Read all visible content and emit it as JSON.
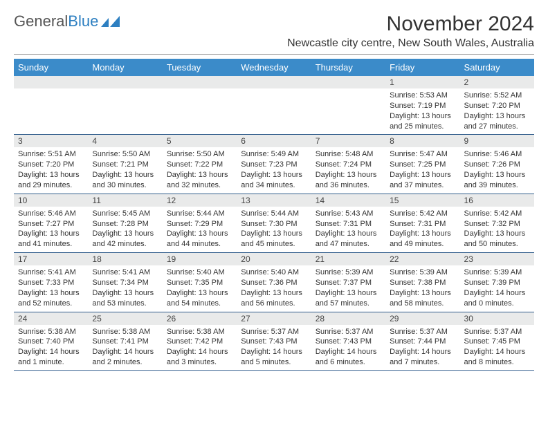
{
  "logo": {
    "text_gray": "General",
    "text_blue": "Blue"
  },
  "title": "November 2024",
  "location": "Newcastle city centre, New South Wales, Australia",
  "colors": {
    "header_bg": "#3b8bc9",
    "header_text": "#ffffff",
    "daynum_bg": "#e9eaea",
    "cell_border": "#2d5a8a",
    "logo_blue": "#2d7fc1",
    "text": "#333333",
    "page_bg": "#ffffff"
  },
  "typography": {
    "title_fontsize": 30,
    "location_fontsize": 16,
    "dayheader_fontsize": 13,
    "daynum_fontsize": 12,
    "cell_fontsize": 11
  },
  "day_names": [
    "Sunday",
    "Monday",
    "Tuesday",
    "Wednesday",
    "Thursday",
    "Friday",
    "Saturday"
  ],
  "weeks": [
    [
      {
        "n": "",
        "sunrise": "",
        "sunset": "",
        "daylight": ""
      },
      {
        "n": "",
        "sunrise": "",
        "sunset": "",
        "daylight": ""
      },
      {
        "n": "",
        "sunrise": "",
        "sunset": "",
        "daylight": ""
      },
      {
        "n": "",
        "sunrise": "",
        "sunset": "",
        "daylight": ""
      },
      {
        "n": "",
        "sunrise": "",
        "sunset": "",
        "daylight": ""
      },
      {
        "n": "1",
        "sunrise": "Sunrise: 5:53 AM",
        "sunset": "Sunset: 7:19 PM",
        "daylight": "Daylight: 13 hours and 25 minutes."
      },
      {
        "n": "2",
        "sunrise": "Sunrise: 5:52 AM",
        "sunset": "Sunset: 7:20 PM",
        "daylight": "Daylight: 13 hours and 27 minutes."
      }
    ],
    [
      {
        "n": "3",
        "sunrise": "Sunrise: 5:51 AM",
        "sunset": "Sunset: 7:20 PM",
        "daylight": "Daylight: 13 hours and 29 minutes."
      },
      {
        "n": "4",
        "sunrise": "Sunrise: 5:50 AM",
        "sunset": "Sunset: 7:21 PM",
        "daylight": "Daylight: 13 hours and 30 minutes."
      },
      {
        "n": "5",
        "sunrise": "Sunrise: 5:50 AM",
        "sunset": "Sunset: 7:22 PM",
        "daylight": "Daylight: 13 hours and 32 minutes."
      },
      {
        "n": "6",
        "sunrise": "Sunrise: 5:49 AM",
        "sunset": "Sunset: 7:23 PM",
        "daylight": "Daylight: 13 hours and 34 minutes."
      },
      {
        "n": "7",
        "sunrise": "Sunrise: 5:48 AM",
        "sunset": "Sunset: 7:24 PM",
        "daylight": "Daylight: 13 hours and 36 minutes."
      },
      {
        "n": "8",
        "sunrise": "Sunrise: 5:47 AM",
        "sunset": "Sunset: 7:25 PM",
        "daylight": "Daylight: 13 hours and 37 minutes."
      },
      {
        "n": "9",
        "sunrise": "Sunrise: 5:46 AM",
        "sunset": "Sunset: 7:26 PM",
        "daylight": "Daylight: 13 hours and 39 minutes."
      }
    ],
    [
      {
        "n": "10",
        "sunrise": "Sunrise: 5:46 AM",
        "sunset": "Sunset: 7:27 PM",
        "daylight": "Daylight: 13 hours and 41 minutes."
      },
      {
        "n": "11",
        "sunrise": "Sunrise: 5:45 AM",
        "sunset": "Sunset: 7:28 PM",
        "daylight": "Daylight: 13 hours and 42 minutes."
      },
      {
        "n": "12",
        "sunrise": "Sunrise: 5:44 AM",
        "sunset": "Sunset: 7:29 PM",
        "daylight": "Daylight: 13 hours and 44 minutes."
      },
      {
        "n": "13",
        "sunrise": "Sunrise: 5:44 AM",
        "sunset": "Sunset: 7:30 PM",
        "daylight": "Daylight: 13 hours and 45 minutes."
      },
      {
        "n": "14",
        "sunrise": "Sunrise: 5:43 AM",
        "sunset": "Sunset: 7:31 PM",
        "daylight": "Daylight: 13 hours and 47 minutes."
      },
      {
        "n": "15",
        "sunrise": "Sunrise: 5:42 AM",
        "sunset": "Sunset: 7:31 PM",
        "daylight": "Daylight: 13 hours and 49 minutes."
      },
      {
        "n": "16",
        "sunrise": "Sunrise: 5:42 AM",
        "sunset": "Sunset: 7:32 PM",
        "daylight": "Daylight: 13 hours and 50 minutes."
      }
    ],
    [
      {
        "n": "17",
        "sunrise": "Sunrise: 5:41 AM",
        "sunset": "Sunset: 7:33 PM",
        "daylight": "Daylight: 13 hours and 52 minutes."
      },
      {
        "n": "18",
        "sunrise": "Sunrise: 5:41 AM",
        "sunset": "Sunset: 7:34 PM",
        "daylight": "Daylight: 13 hours and 53 minutes."
      },
      {
        "n": "19",
        "sunrise": "Sunrise: 5:40 AM",
        "sunset": "Sunset: 7:35 PM",
        "daylight": "Daylight: 13 hours and 54 minutes."
      },
      {
        "n": "20",
        "sunrise": "Sunrise: 5:40 AM",
        "sunset": "Sunset: 7:36 PM",
        "daylight": "Daylight: 13 hours and 56 minutes."
      },
      {
        "n": "21",
        "sunrise": "Sunrise: 5:39 AM",
        "sunset": "Sunset: 7:37 PM",
        "daylight": "Daylight: 13 hours and 57 minutes."
      },
      {
        "n": "22",
        "sunrise": "Sunrise: 5:39 AM",
        "sunset": "Sunset: 7:38 PM",
        "daylight": "Daylight: 13 hours and 58 minutes."
      },
      {
        "n": "23",
        "sunrise": "Sunrise: 5:39 AM",
        "sunset": "Sunset: 7:39 PM",
        "daylight": "Daylight: 14 hours and 0 minutes."
      }
    ],
    [
      {
        "n": "24",
        "sunrise": "Sunrise: 5:38 AM",
        "sunset": "Sunset: 7:40 PM",
        "daylight": "Daylight: 14 hours and 1 minute."
      },
      {
        "n": "25",
        "sunrise": "Sunrise: 5:38 AM",
        "sunset": "Sunset: 7:41 PM",
        "daylight": "Daylight: 14 hours and 2 minutes."
      },
      {
        "n": "26",
        "sunrise": "Sunrise: 5:38 AM",
        "sunset": "Sunset: 7:42 PM",
        "daylight": "Daylight: 14 hours and 3 minutes."
      },
      {
        "n": "27",
        "sunrise": "Sunrise: 5:37 AM",
        "sunset": "Sunset: 7:43 PM",
        "daylight": "Daylight: 14 hours and 5 minutes."
      },
      {
        "n": "28",
        "sunrise": "Sunrise: 5:37 AM",
        "sunset": "Sunset: 7:43 PM",
        "daylight": "Daylight: 14 hours and 6 minutes."
      },
      {
        "n": "29",
        "sunrise": "Sunrise: 5:37 AM",
        "sunset": "Sunset: 7:44 PM",
        "daylight": "Daylight: 14 hours and 7 minutes."
      },
      {
        "n": "30",
        "sunrise": "Sunrise: 5:37 AM",
        "sunset": "Sunset: 7:45 PM",
        "daylight": "Daylight: 14 hours and 8 minutes."
      }
    ]
  ]
}
